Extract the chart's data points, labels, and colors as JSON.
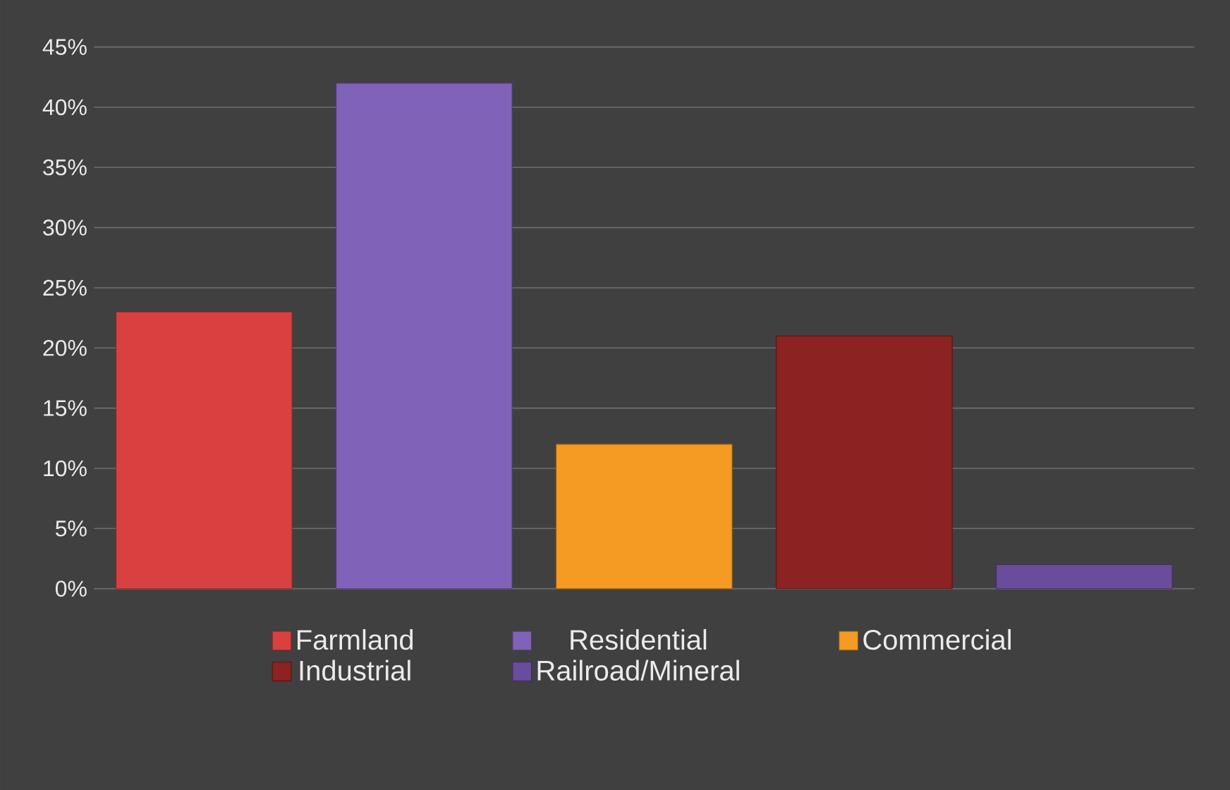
{
  "chart_data": {
    "type": "bar",
    "categories": [
      null,
      null,
      null,
      null,
      null
    ],
    "series": [
      {
        "name": "Farmland",
        "color": "#d94141",
        "values": [
          23,
          null,
          null,
          null,
          null
        ]
      },
      {
        "name": "Residential",
        "color": "#8062b8",
        "values": [
          null,
          42,
          null,
          null,
          null
        ]
      },
      {
        "name": "Commercial",
        "color": "#f59a22",
        "values": [
          null,
          null,
          12,
          null,
          null
        ]
      },
      {
        "name": "Industrial",
        "color": "#8c2222",
        "values": [
          null,
          null,
          null,
          21,
          null
        ]
      },
      {
        "name": "Railroad/Mineral",
        "color": "#6a4c9c",
        "values": [
          null,
          null,
          null,
          null,
          2
        ]
      }
    ],
    "ylim": [
      0,
      45
    ],
    "yticks": [
      {
        "value": 0,
        "label": "0%"
      },
      {
        "value": 5,
        "label": "5%"
      },
      {
        "value": 10,
        "label": "10%"
      },
      {
        "value": 15,
        "label": "15%"
      },
      {
        "value": 20,
        "label": "20%"
      },
      {
        "value": 25,
        "label": "25%"
      },
      {
        "value": 30,
        "label": "30%"
      },
      {
        "value": 35,
        "label": "35%"
      },
      {
        "value": 40,
        "label": "40%"
      },
      {
        "value": 45,
        "label": "45%"
      }
    ],
    "grid": "y",
    "legend": "bottom"
  }
}
